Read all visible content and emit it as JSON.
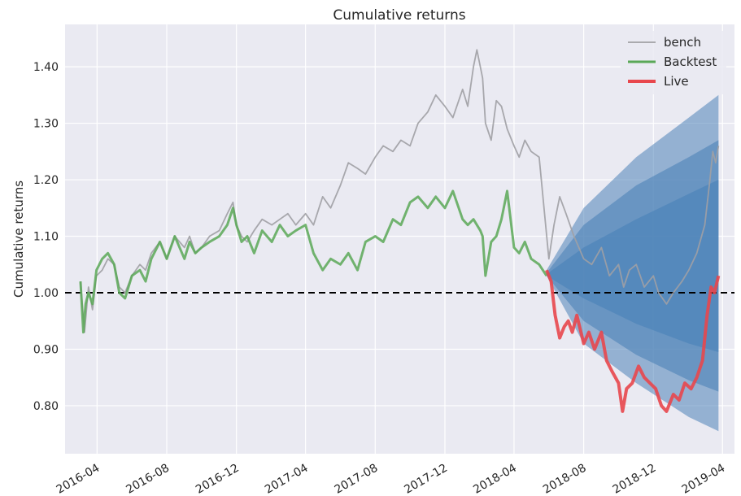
{
  "chart_data": {
    "type": "line",
    "title": "Cumulative returns",
    "xlabel": "",
    "ylabel": "Cumulative returns",
    "x_range": [
      "2016-02-05",
      "2019-04-22"
    ],
    "ylim": [
      0.715,
      1.475
    ],
    "x_ticks": [
      "2016-04",
      "2016-08",
      "2016-12",
      "2017-04",
      "2017-08",
      "2017-12",
      "2018-04",
      "2018-08",
      "2018-12",
      "2019-04"
    ],
    "y_ticks": [
      "0.80",
      "0.90",
      "1.00",
      "1.10",
      "1.20",
      "1.30",
      "1.40"
    ],
    "grid": true,
    "legend_position": "top-right",
    "reference_line": {
      "y": 1.0,
      "style": "dashed",
      "color": "#000000"
    },
    "cone": {
      "color": "#4c82b8",
      "bands": [
        {
          "name": "outer",
          "x": [
            "2018-05-28",
            "2018-08-01",
            "2018-11-01",
            "2019-02-01",
            "2019-03-25"
          ],
          "upper": [
            1.04,
            1.15,
            1.24,
            1.31,
            1.35
          ],
          "lower": [
            1.03,
            0.91,
            0.84,
            0.78,
            0.755
          ]
        },
        {
          "name": "middle",
          "x": [
            "2018-05-28",
            "2018-08-01",
            "2018-11-01",
            "2019-02-01",
            "2019-03-25"
          ],
          "upper": [
            1.035,
            1.12,
            1.19,
            1.24,
            1.27
          ],
          "lower": [
            1.03,
            0.95,
            0.89,
            0.845,
            0.825
          ]
        },
        {
          "name": "inner",
          "x": [
            "2018-05-28",
            "2018-08-01",
            "2018-11-01",
            "2019-02-01",
            "2019-03-25"
          ],
          "upper": [
            1.033,
            1.08,
            1.13,
            1.175,
            1.2
          ],
          "lower": [
            1.03,
            0.99,
            0.945,
            0.91,
            0.895
          ]
        }
      ]
    },
    "series": [
      {
        "name": "bench",
        "color": "#a0a0a4",
        "x": [
          "2016-03-03",
          "2016-03-10",
          "2016-03-17",
          "2016-03-24",
          "2016-03-31",
          "2016-04-10",
          "2016-04-20",
          "2016-05-01",
          "2016-05-10",
          "2016-05-20",
          "2016-06-01",
          "2016-06-15",
          "2016-06-25",
          "2016-07-05",
          "2016-07-20",
          "2016-08-01",
          "2016-08-15",
          "2016-09-01",
          "2016-09-10",
          "2016-09-20",
          "2016-10-01",
          "2016-10-15",
          "2016-11-01",
          "2016-11-15",
          "2016-11-25",
          "2016-12-01",
          "2016-12-10",
          "2016-12-20",
          "2017-01-01",
          "2017-01-15",
          "2017-02-01",
          "2017-02-15",
          "2017-03-01",
          "2017-03-15",
          "2017-04-01",
          "2017-04-15",
          "2017-05-01",
          "2017-05-15",
          "2017-06-01",
          "2017-06-15",
          "2017-07-01",
          "2017-07-15",
          "2017-08-01",
          "2017-08-15",
          "2017-09-01",
          "2017-09-15",
          "2017-10-01",
          "2017-10-15",
          "2017-11-01",
          "2017-11-15",
          "2017-12-01",
          "2017-12-15",
          "2018-01-01",
          "2018-01-10",
          "2018-01-20",
          "2018-01-26",
          "2018-02-05",
          "2018-02-10",
          "2018-02-20",
          "2018-03-01",
          "2018-03-10",
          "2018-03-20",
          "2018-04-01",
          "2018-04-10",
          "2018-04-20",
          "2018-05-01",
          "2018-05-15",
          "2018-06-01",
          "2018-06-10",
          "2018-06-20",
          "2018-07-01",
          "2018-07-15",
          "2018-08-01",
          "2018-08-15",
          "2018-09-01",
          "2018-09-15",
          "2018-10-01",
          "2018-10-10",
          "2018-10-20",
          "2018-11-01",
          "2018-11-15",
          "2018-12-01",
          "2018-12-10",
          "2018-12-24",
          "2019-01-05",
          "2019-01-20",
          "2019-02-01",
          "2019-02-15",
          "2019-03-01",
          "2019-03-10",
          "2019-03-15",
          "2019-03-20",
          "2019-03-25"
        ],
        "y": [
          1.02,
          0.93,
          1.01,
          0.97,
          1.03,
          1.04,
          1.06,
          1.05,
          1.01,
          1.0,
          1.03,
          1.05,
          1.04,
          1.07,
          1.09,
          1.06,
          1.1,
          1.08,
          1.1,
          1.07,
          1.08,
          1.1,
          1.11,
          1.14,
          1.16,
          1.12,
          1.1,
          1.09,
          1.11,
          1.13,
          1.12,
          1.13,
          1.14,
          1.12,
          1.14,
          1.12,
          1.17,
          1.15,
          1.19,
          1.23,
          1.22,
          1.21,
          1.24,
          1.26,
          1.25,
          1.27,
          1.26,
          1.3,
          1.32,
          1.35,
          1.33,
          1.31,
          1.36,
          1.33,
          1.4,
          1.43,
          1.38,
          1.3,
          1.27,
          1.34,
          1.33,
          1.29,
          1.26,
          1.24,
          1.27,
          1.25,
          1.24,
          1.06,
          1.12,
          1.17,
          1.14,
          1.1,
          1.06,
          1.05,
          1.08,
          1.03,
          1.05,
          1.01,
          1.04,
          1.05,
          1.01,
          1.03,
          1.0,
          0.98,
          1.0,
          1.02,
          1.04,
          1.07,
          1.12,
          1.2,
          1.25,
          1.23,
          1.26
        ]
      },
      {
        "name": "Backtest",
        "color": "#5aa857",
        "x": [
          "2016-03-03",
          "2016-03-08",
          "2016-03-12",
          "2016-03-17",
          "2016-03-24",
          "2016-03-31",
          "2016-04-10",
          "2016-04-20",
          "2016-05-01",
          "2016-05-10",
          "2016-05-20",
          "2016-06-01",
          "2016-06-15",
          "2016-06-25",
          "2016-07-05",
          "2016-07-20",
          "2016-08-01",
          "2016-08-15",
          "2016-09-01",
          "2016-09-10",
          "2016-09-20",
          "2016-10-01",
          "2016-10-15",
          "2016-11-01",
          "2016-11-15",
          "2016-11-25",
          "2016-12-01",
          "2016-12-10",
          "2016-12-20",
          "2017-01-01",
          "2017-01-15",
          "2017-02-01",
          "2017-02-15",
          "2017-03-01",
          "2017-03-15",
          "2017-04-01",
          "2017-04-15",
          "2017-05-01",
          "2017-05-15",
          "2017-06-01",
          "2017-06-15",
          "2017-07-01",
          "2017-07-15",
          "2017-08-01",
          "2017-08-15",
          "2017-09-01",
          "2017-09-15",
          "2017-10-01",
          "2017-10-15",
          "2017-11-01",
          "2017-11-15",
          "2017-12-01",
          "2017-12-15",
          "2018-01-01",
          "2018-01-10",
          "2018-01-20",
          "2018-02-01",
          "2018-02-05",
          "2018-02-10",
          "2018-02-20",
          "2018-03-01",
          "2018-03-10",
          "2018-03-20",
          "2018-04-01",
          "2018-04-10",
          "2018-04-20",
          "2018-05-01",
          "2018-05-15",
          "2018-05-28"
        ],
        "y": [
          1.02,
          0.93,
          0.98,
          1.0,
          0.98,
          1.04,
          1.06,
          1.07,
          1.05,
          1.0,
          0.99,
          1.03,
          1.04,
          1.02,
          1.06,
          1.09,
          1.06,
          1.1,
          1.06,
          1.09,
          1.07,
          1.08,
          1.09,
          1.1,
          1.12,
          1.15,
          1.12,
          1.09,
          1.1,
          1.07,
          1.11,
          1.09,
          1.12,
          1.1,
          1.11,
          1.12,
          1.07,
          1.04,
          1.06,
          1.05,
          1.07,
          1.04,
          1.09,
          1.1,
          1.09,
          1.13,
          1.12,
          1.16,
          1.17,
          1.15,
          1.17,
          1.15,
          1.18,
          1.13,
          1.12,
          1.13,
          1.11,
          1.1,
          1.03,
          1.09,
          1.1,
          1.13,
          1.18,
          1.08,
          1.07,
          1.09,
          1.06,
          1.05,
          1.03
        ]
      },
      {
        "name": "Live",
        "color": "#e8474d",
        "x": [
          "2018-05-28",
          "2018-06-05",
          "2018-06-12",
          "2018-06-20",
          "2018-06-28",
          "2018-07-05",
          "2018-07-12",
          "2018-07-20",
          "2018-08-01",
          "2018-08-10",
          "2018-08-20",
          "2018-09-01",
          "2018-09-10",
          "2018-09-20",
          "2018-10-01",
          "2018-10-08",
          "2018-10-15",
          "2018-10-25",
          "2018-11-05",
          "2018-11-15",
          "2018-11-25",
          "2018-12-05",
          "2018-12-15",
          "2018-12-24",
          "2019-01-05",
          "2019-01-15",
          "2019-01-25",
          "2019-02-05",
          "2019-02-15",
          "2019-02-25",
          "2019-03-05",
          "2019-03-12",
          "2019-03-18",
          "2019-03-25"
        ],
        "y": [
          1.04,
          1.02,
          0.96,
          0.92,
          0.94,
          0.95,
          0.93,
          0.96,
          0.91,
          0.93,
          0.9,
          0.93,
          0.88,
          0.86,
          0.84,
          0.79,
          0.83,
          0.84,
          0.87,
          0.85,
          0.84,
          0.83,
          0.8,
          0.79,
          0.82,
          0.81,
          0.84,
          0.83,
          0.85,
          0.88,
          0.96,
          1.01,
          1.0,
          1.03
        ]
      }
    ]
  }
}
